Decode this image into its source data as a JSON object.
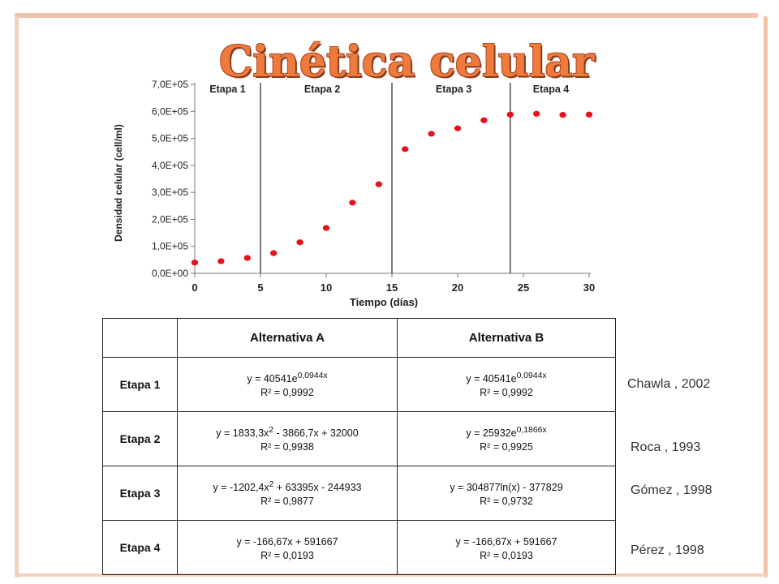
{
  "title": "Cinética celular",
  "chart_data": {
    "type": "scatter",
    "xlabel": "Tiempo (días)",
    "ylabel": "Densidad celular (cell/ml)",
    "xlim": [
      0,
      30
    ],
    "ylim": [
      0,
      700000
    ],
    "xticks": [
      "0",
      "5",
      "10",
      "15",
      "20",
      "25",
      "30"
    ],
    "yticks": [
      "0,0E+00",
      "1,0E+05",
      "2,0E+05",
      "3,0E+05",
      "4,0E+05",
      "5,0E+05",
      "6,0E+05",
      "7,0E+05"
    ],
    "grid": false,
    "legend": "none",
    "color": "#e8111b",
    "series": [
      {
        "x": [
          0,
          2,
          4,
          6,
          8,
          10,
          12,
          14,
          16,
          18,
          20,
          22,
          24,
          26,
          28,
          30
        ],
        "y": [
          40000,
          45000,
          57000,
          75000,
          115000,
          168000,
          262000,
          330000,
          460000,
          517000,
          537000,
          567000,
          588000,
          591000,
          587000,
          588000
        ]
      }
    ],
    "stage_dividers": [
      5,
      15,
      24
    ],
    "stage_labels": [
      {
        "label": "Etapa 1",
        "x": 2.5
      },
      {
        "label": "Etapa 2",
        "x": 9.7
      },
      {
        "label": "Etapa 3",
        "x": 19.7
      },
      {
        "label": "Etapa 4",
        "x": 27.1
      }
    ]
  },
  "table": {
    "headers": [
      "Alternativa A",
      "Alternativa B"
    ],
    "rows": [
      {
        "stage": "Etapa 1",
        "a_eq_base": "y = 40541e",
        "a_eq_sup": "0,0944x",
        "a_eq_tail": "",
        "a_r2": "R² = 0,9992",
        "b_eq_base": "y = 40541e",
        "b_eq_sup": "0,0944x",
        "b_eq_tail": "",
        "b_r2": "R² = 0,9992"
      },
      {
        "stage": "Etapa 2",
        "a_eq_base": "y = 1833,3x",
        "a_eq_sup": "2",
        "a_eq_tail": " - 3866,7x + 32000",
        "a_r2": "R² = 0,9938",
        "b_eq_base": "y = 25932e",
        "b_eq_sup": "0,1866x",
        "b_eq_tail": "",
        "b_r2": "R² = 0,9925"
      },
      {
        "stage": "Etapa 3",
        "a_eq_base": "y = -1202,4x",
        "a_eq_sup": "2",
        "a_eq_tail": " + 63395x - 244933",
        "a_r2": "R² = 0,9877",
        "b_eq_base": "y = 304877ln(x) - 377829",
        "b_eq_sup": "",
        "b_eq_tail": "",
        "b_r2": "R² = 0,9732"
      },
      {
        "stage": "Etapa 4",
        "a_eq_base": "y = -166,67x + 591667",
        "a_eq_sup": "",
        "a_eq_tail": "",
        "a_r2": "R² = 0,0193",
        "b_eq_base": "y = -166,67x + 591667",
        "b_eq_sup": "",
        "b_eq_tail": "",
        "b_r2": "R² = 0,0193"
      }
    ]
  },
  "references": [
    "Chawla , 2002",
    "Roca , 1993",
    "Gómez , 1998",
    "Pérez , 1998"
  ],
  "colors": {
    "accent": "#ee7a3e",
    "frame": "#f2c3a8",
    "points": "#e8111b"
  }
}
